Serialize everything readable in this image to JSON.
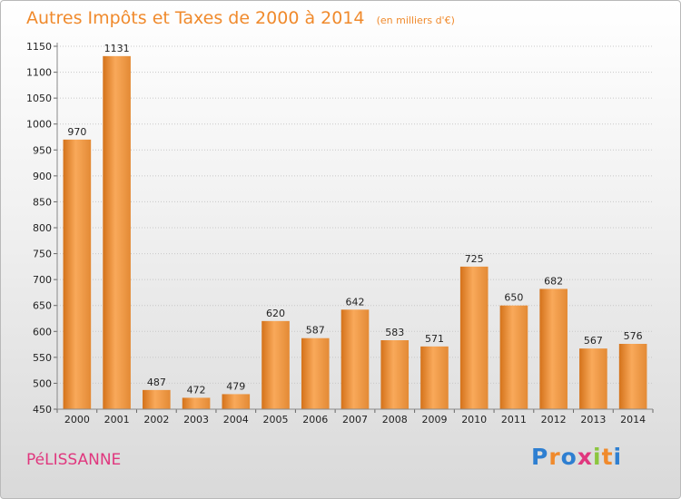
{
  "title": "Autres Impôts et Taxes de 2000 à 2014",
  "unit_note": "(en milliers d'€)",
  "location": "PéLISSANNE",
  "brand": "Proxiti",
  "colors": {
    "title": "#f08a2c",
    "bar_light": "#f9a95a",
    "bar_dark": "#d4721a",
    "city": "#e0377e",
    "brand_letters": [
      "#2e7fd1",
      "#f08a2c",
      "#2e7fd1",
      "#e0377e",
      "#8cc63f",
      "#f08a2c",
      "#2e7fd1"
    ]
  },
  "chart_data": {
    "type": "bar",
    "title": "Autres Impôts et Taxes de 2000 à 2014",
    "subtitle": "(en milliers d'€)",
    "xlabel": "",
    "ylabel": "",
    "categories": [
      "2000",
      "2001",
      "2002",
      "2003",
      "2004",
      "2005",
      "2006",
      "2007",
      "2008",
      "2009",
      "2010",
      "2011",
      "2012",
      "2013",
      "2014"
    ],
    "values": [
      970,
      1131,
      487,
      472,
      479,
      620,
      587,
      642,
      583,
      571,
      725,
      650,
      682,
      567,
      576
    ],
    "value_labels": [
      "970",
      "1131",
      "487",
      "472",
      "479",
      "620",
      "587",
      "642",
      "583",
      "571",
      "725",
      "650",
      "682",
      "567",
      "576"
    ],
    "ylim": [
      450,
      1150
    ],
    "yticks": [
      450,
      500,
      550,
      600,
      650,
      700,
      750,
      800,
      850,
      900,
      950,
      1000,
      1050,
      1100,
      1150
    ],
    "ytick_labels": [
      "450",
      "500",
      "550",
      "600",
      "650",
      "700",
      "750",
      "800",
      "850",
      "900",
      "950",
      "1000",
      "1050",
      "1100",
      "1150"
    ],
    "grid": true,
    "legend": "none"
  }
}
